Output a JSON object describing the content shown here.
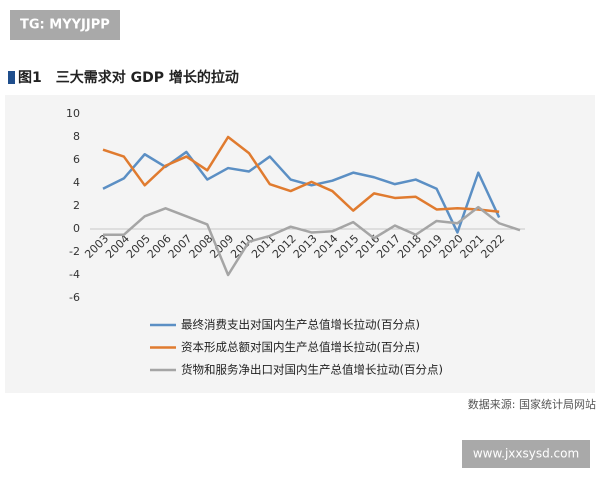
{
  "header_tag": "TG: MYYJJPP",
  "watermark": "www.jxxsysd.com",
  "chart_data": {
    "type": "line",
    "title": "图1　三大需求对 GDP 增长的拉动",
    "source": "数据来源: 国家统计局网站",
    "categories": [
      "2003",
      "2004",
      "2005",
      "2006",
      "2007",
      "2008",
      "2009",
      "2010",
      "2011",
      "2012",
      "2013",
      "2014",
      "2015",
      "2016",
      "2017",
      "2018",
      "2019",
      "2020",
      "2021",
      "2022",
      null
    ],
    "series": [
      {
        "name": "最终消费支出对国内生产总值增长拉动(百分点)",
        "color": "#5b8fc4",
        "values": [
          3.5,
          4.4,
          6.5,
          5.4,
          6.7,
          4.3,
          5.3,
          5.0,
          6.3,
          4.3,
          3.8,
          4.2,
          4.9,
          4.5,
          3.9,
          4.3,
          3.5,
          -0.3,
          4.9,
          1.0,
          null
        ]
      },
      {
        "name": "资本形成总额对国内生产总值增长拉动(百分点)",
        "color": "#e07b2f",
        "values": [
          6.9,
          6.3,
          3.8,
          5.5,
          6.3,
          5.1,
          8.0,
          6.6,
          3.9,
          3.3,
          4.1,
          3.3,
          1.6,
          3.1,
          2.7,
          2.8,
          1.7,
          1.8,
          1.7,
          1.5,
          null
        ]
      },
      {
        "name": "货物和服务净出口对国内生产总值增长拉动(百分点)",
        "color": "#a5a5a5",
        "values": [
          -0.5,
          -0.5,
          1.1,
          1.8,
          1.1,
          0.4,
          -4.0,
          -1.1,
          -0.6,
          0.2,
          -0.3,
          -0.2,
          0.6,
          -0.8,
          0.3,
          -0.5,
          0.7,
          0.5,
          1.9,
          0.5,
          -0.1
        ]
      }
    ],
    "ylim": [
      -6,
      10
    ],
    "yticks": [
      -6,
      -4,
      -2,
      0,
      2,
      4,
      6,
      8,
      10
    ],
    "grid": false
  }
}
